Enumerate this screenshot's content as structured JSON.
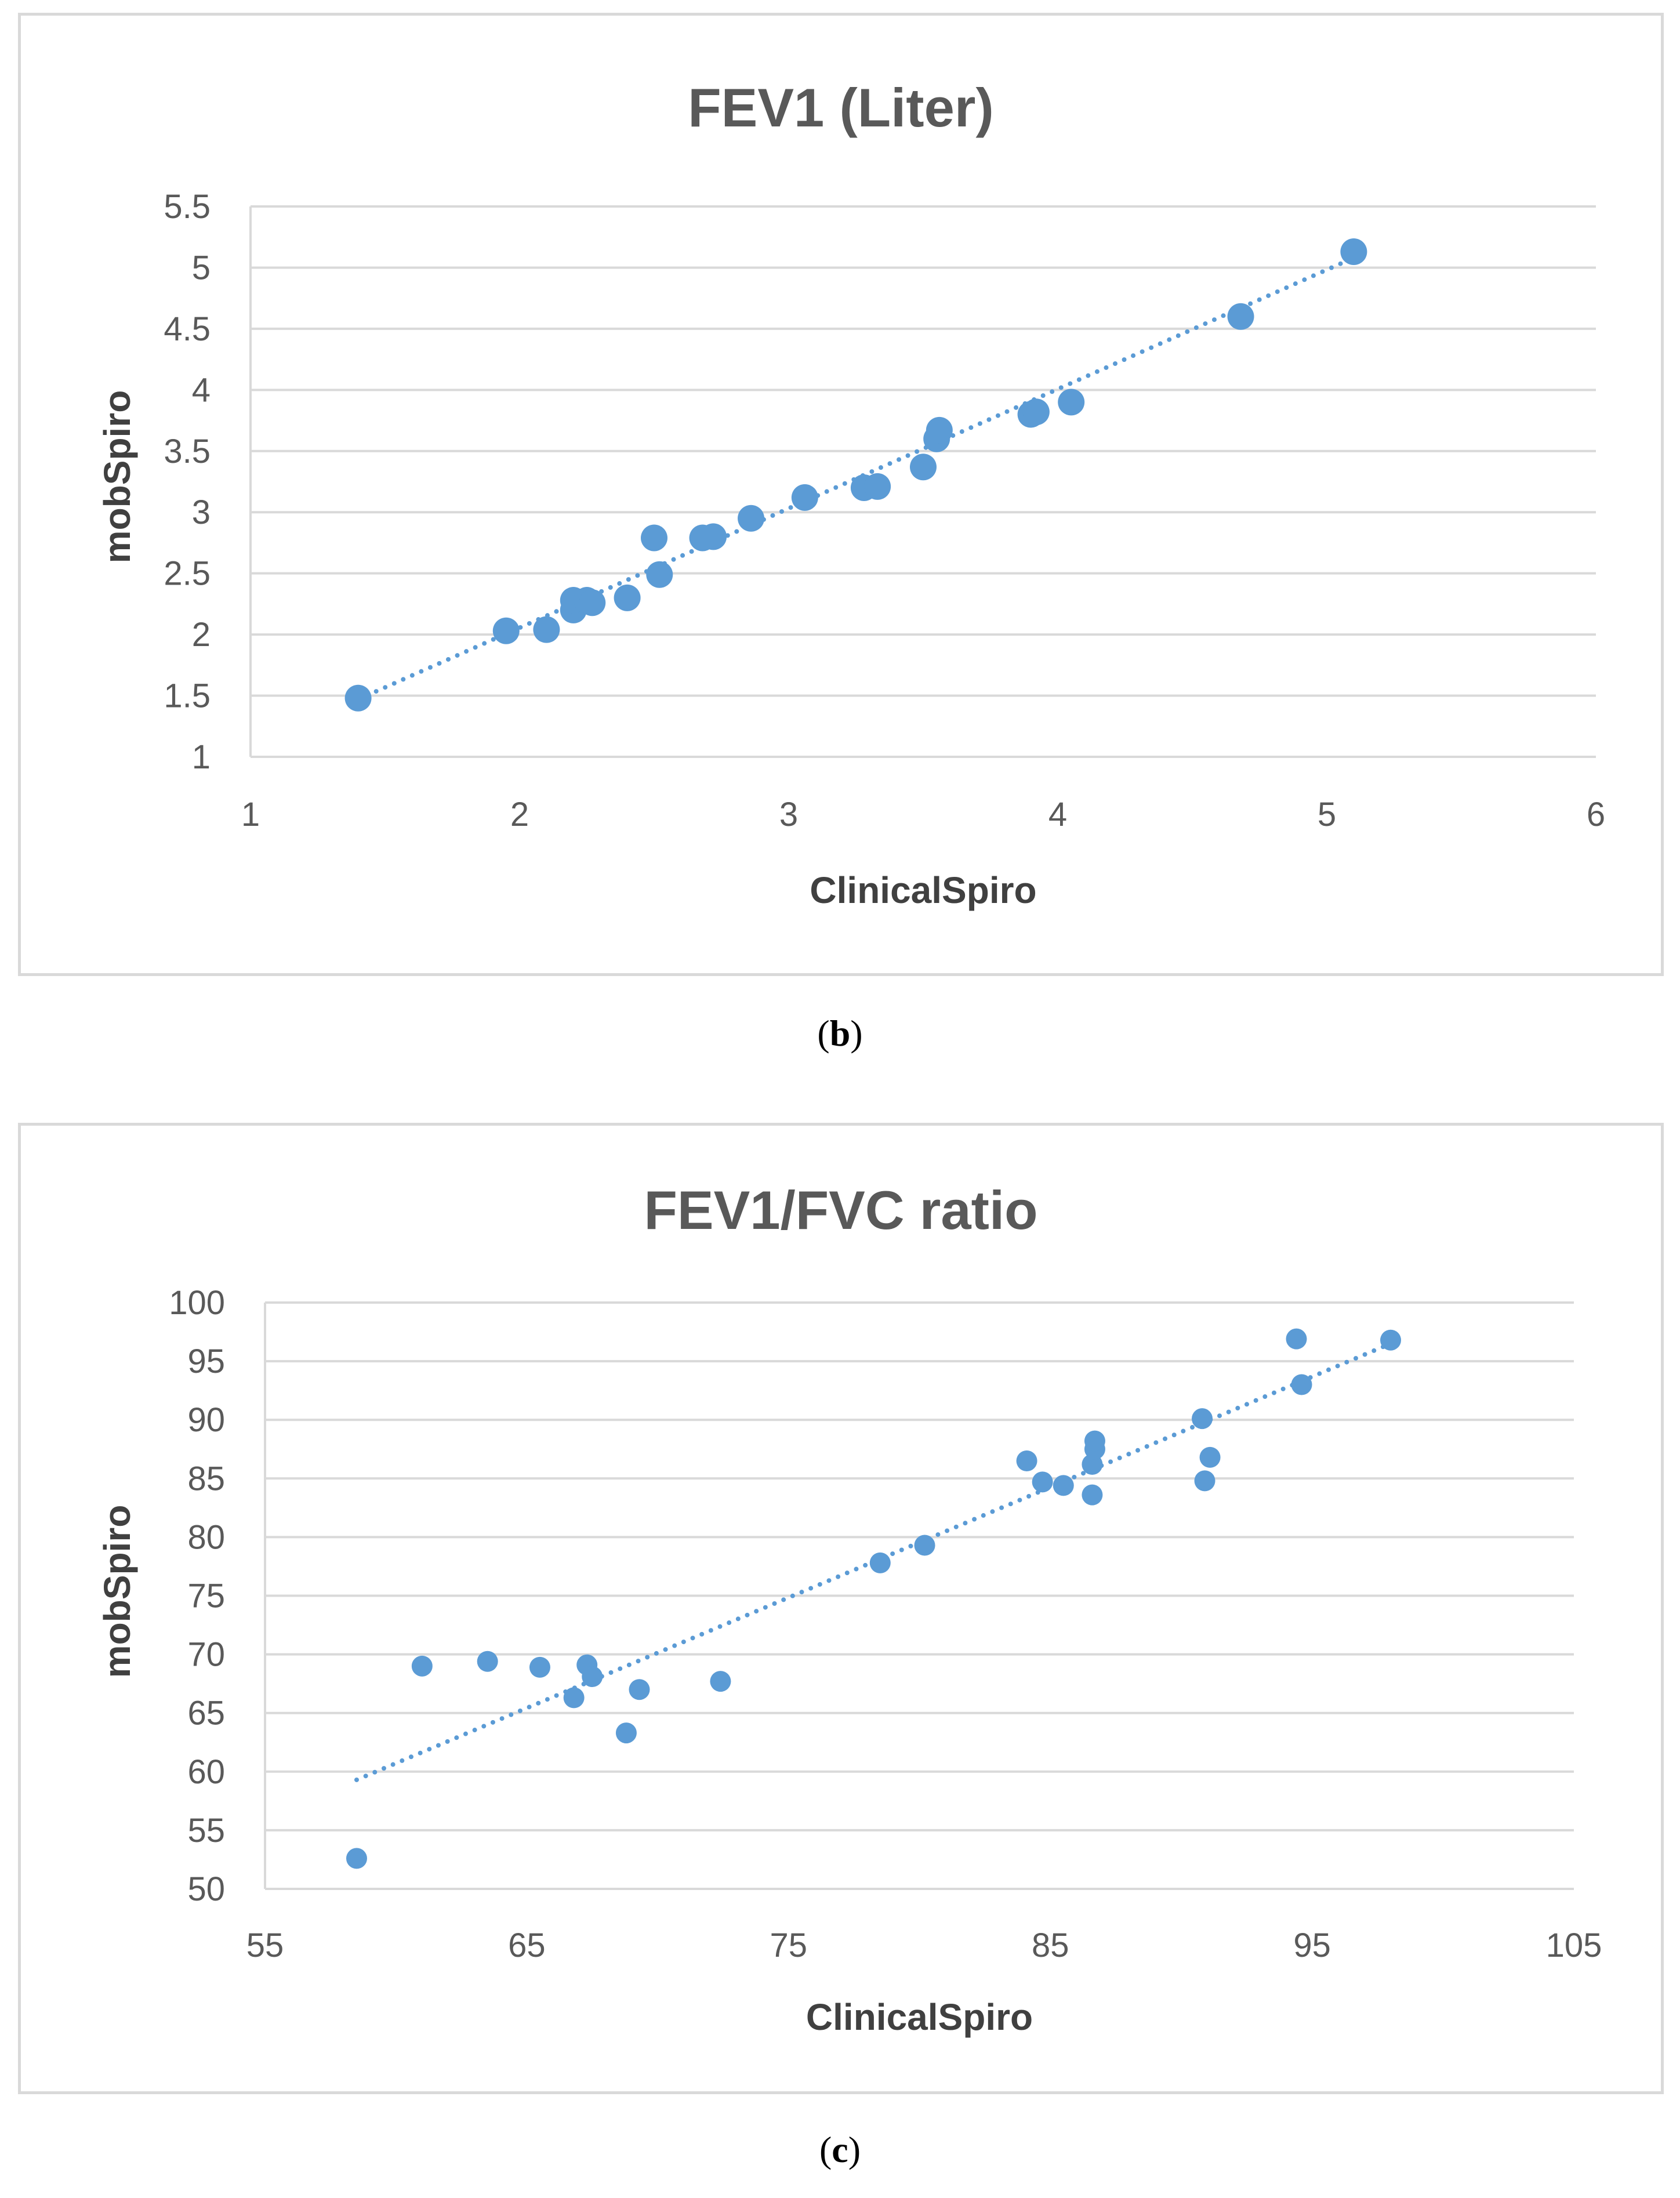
{
  "colors": {
    "marker": "#5b9bd5",
    "grid": "#d9d9d9",
    "text": "#595959"
  },
  "chart_data": [
    {
      "type": "scatter",
      "title": "FEV1 (Liter)",
      "xlabel": "ClinicalSpiro",
      "ylabel": "mobSpiro",
      "xlim": [
        1,
        6
      ],
      "ylim": [
        1,
        5.5
      ],
      "x_ticks": [
        "1",
        "2",
        "3",
        "4",
        "5",
        "6"
      ],
      "y_ticks": [
        "1",
        "1.5",
        "2",
        "2.5",
        "3",
        "3.5",
        "4",
        "4.5",
        "5",
        "5.5"
      ],
      "trendline": {
        "type": "linear",
        "style": "dotted",
        "x": [
          1.4,
          5.1
        ],
        "y": [
          1.47,
          5.08
        ]
      },
      "series": [
        {
          "name": "FEV1",
          "points": [
            [
              1.4,
              1.48
            ],
            [
              1.95,
              2.03
            ],
            [
              2.1,
              2.04
            ],
            [
              2.2,
              2.2
            ],
            [
              2.2,
              2.28
            ],
            [
              2.25,
              2.28
            ],
            [
              2.27,
              2.26
            ],
            [
              2.4,
              2.3
            ],
            [
              2.5,
              2.79
            ],
            [
              2.52,
              2.49
            ],
            [
              2.68,
              2.79
            ],
            [
              2.72,
              2.8
            ],
            [
              2.86,
              2.95
            ],
            [
              3.06,
              3.12
            ],
            [
              3.28,
              3.2
            ],
            [
              3.33,
              3.21
            ],
            [
              3.5,
              3.37
            ],
            [
              3.55,
              3.6
            ],
            [
              3.56,
              3.67
            ],
            [
              3.9,
              3.8
            ],
            [
              3.92,
              3.82
            ],
            [
              4.05,
              3.9
            ],
            [
              4.68,
              4.6
            ],
            [
              5.1,
              5.13
            ]
          ]
        }
      ]
    },
    {
      "type": "scatter",
      "title": "FEV1/FVC ratio",
      "xlabel": "ClinicalSpiro",
      "ylabel": "mobSpiro",
      "xlim": [
        55,
        105
      ],
      "ylim": [
        50,
        100
      ],
      "x_ticks": [
        "55",
        "65",
        "75",
        "85",
        "95",
        "105"
      ],
      "y_ticks": [
        "50",
        "55",
        "60",
        "65",
        "70",
        "75",
        "80",
        "85",
        "90",
        "95",
        "100"
      ],
      "trendline": {
        "type": "linear",
        "style": "dotted",
        "x": [
          58.5,
          98
        ],
        "y": [
          59.3,
          96.5
        ]
      },
      "series": [
        {
          "name": "FEV1/FVC",
          "points": [
            [
              58.5,
              52.6
            ],
            [
              61,
              69
            ],
            [
              63.5,
              69.4
            ],
            [
              65.5,
              68.9
            ],
            [
              66.8,
              66.3
            ],
            [
              67.3,
              69.1
            ],
            [
              67.5,
              68.1
            ],
            [
              68.8,
              63.3
            ],
            [
              69.3,
              67
            ],
            [
              72.4,
              67.7
            ],
            [
              78.5,
              77.8
            ],
            [
              80.2,
              79.3
            ],
            [
              84.1,
              86.5
            ],
            [
              84.7,
              84.7
            ],
            [
              85.5,
              84.4
            ],
            [
              86.6,
              83.6
            ],
            [
              86.6,
              86.2
            ],
            [
              86.7,
              87.5
            ],
            [
              86.7,
              88.2
            ],
            [
              90.8,
              90.1
            ],
            [
              90.9,
              84.8
            ],
            [
              91.1,
              86.8
            ],
            [
              94.4,
              96.9
            ],
            [
              94.6,
              93
            ],
            [
              98,
              96.8
            ]
          ]
        }
      ]
    }
  ],
  "captions": [
    {
      "open": "(",
      "letter": "b",
      "close": ")"
    },
    {
      "open": "(",
      "letter": "c",
      "close": ")"
    }
  ]
}
